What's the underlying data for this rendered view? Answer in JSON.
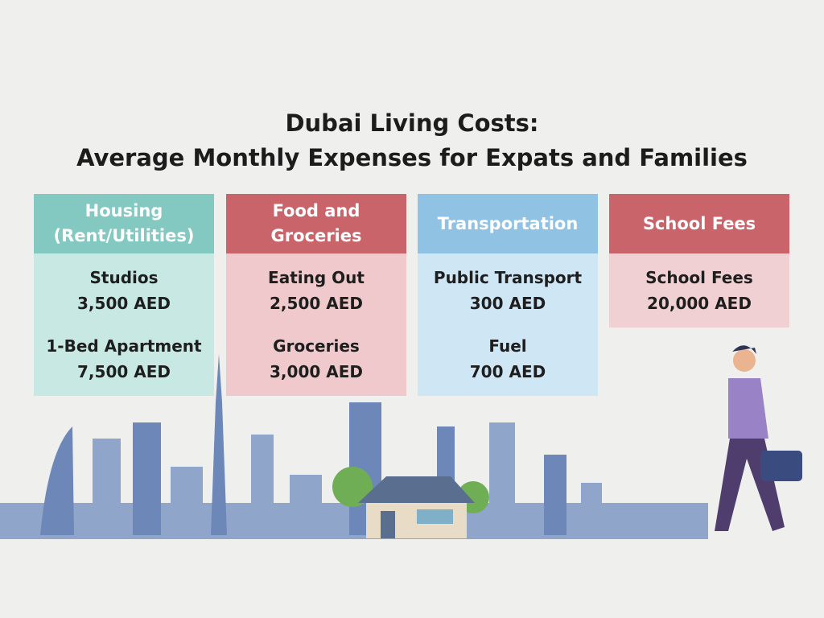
{
  "title": [
    "Dubai Living Costs:",
    "Average Monthly Expenses for Expats and Families"
  ],
  "cards": [
    {
      "header": [
        "Housing",
        "(Rent/Utilities)"
      ],
      "items": [
        {
          "label": "Studios",
          "value": "3,500 AED"
        },
        {
          "label": "1-Bed Apartment",
          "value": "7,500 AED"
        }
      ]
    },
    {
      "header": [
        "Food and",
        "Groceries"
      ],
      "items": [
        {
          "label": "Eating Out",
          "value": "2,500 AED"
        },
        {
          "label": "Groceries",
          "value": "3,000 AED"
        }
      ]
    },
    {
      "header": [
        "Transportation"
      ],
      "items": [
        {
          "label": "Public Transport",
          "value": "300 AED"
        },
        {
          "label": "Fuel",
          "value": "700 AED"
        }
      ]
    },
    {
      "header": [
        "School Fees"
      ],
      "items": [
        {
          "label": "School Fees",
          "value": "20,000 AED"
        }
      ]
    }
  ]
}
